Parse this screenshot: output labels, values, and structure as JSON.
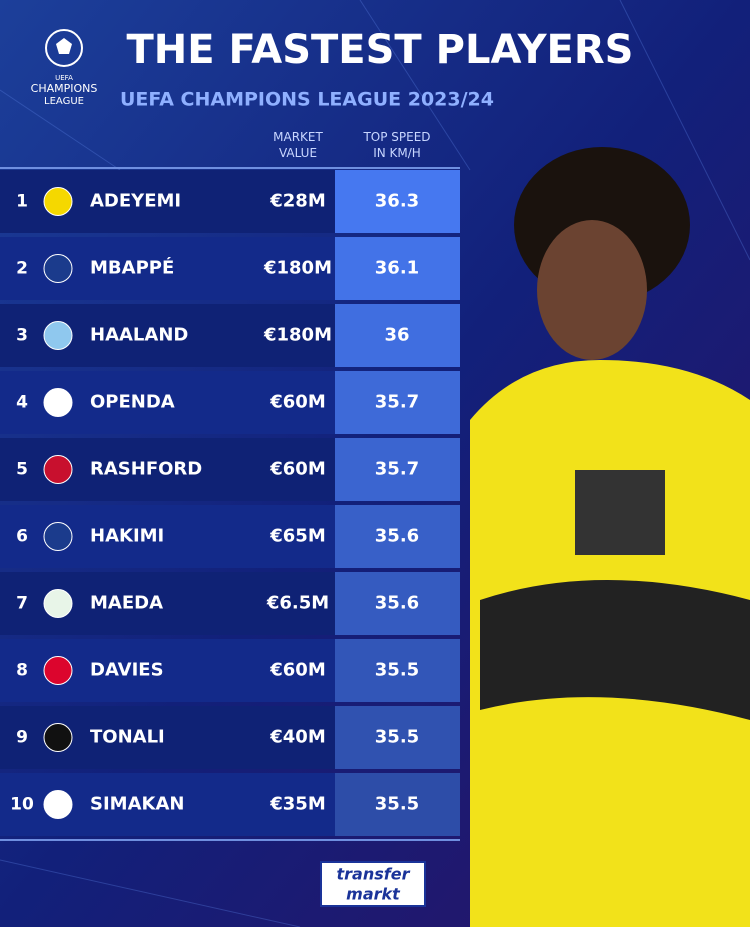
{
  "logo": {
    "lines": [
      "UEFA",
      "CHAMPIONS",
      "LEAGUE"
    ]
  },
  "header": {
    "title": "THE FASTEST PLAYERS",
    "subtitle": "UEFA CHAMPIONS LEAGUE 2023/24"
  },
  "table": {
    "columns": [
      "MARKET VALUE",
      "TOP SPEED IN KM/H"
    ],
    "rows": [
      [
        "1",
        "ADEYEMI",
        "€28M",
        "36.3"
      ],
      [
        "2",
        "MBAPPÉ",
        "€180M",
        "36.1"
      ],
      [
        "3",
        "HAALAND",
        "€180M",
        "36"
      ],
      [
        "4",
        "OPENDA",
        "€60M",
        "35.7"
      ],
      [
        "5",
        "RASHFORD",
        "€60M",
        "35.7"
      ],
      [
        "6",
        "HAKIMI",
        "€65M",
        "35.6"
      ],
      [
        "7",
        "MAEDA",
        "€6.5M",
        "35.6"
      ],
      [
        "8",
        "DAVIES",
        "€60M",
        "35.5"
      ],
      [
        "9",
        "TONALI",
        "€40M",
        "35.5"
      ],
      [
        "10",
        "SIMAKAN",
        "€35M",
        "35.5"
      ]
    ]
  },
  "footer": {
    "logo": [
      "transfer",
      "markt"
    ]
  }
}
